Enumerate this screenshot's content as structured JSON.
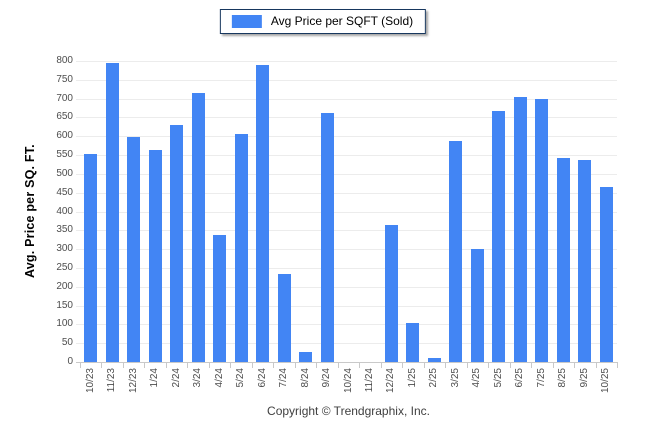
{
  "legend": {
    "label": "Avg Price per SQFT (Sold)",
    "swatch_color": "#4285f4"
  },
  "footer": {
    "text": "Copyright © Trendgraphix, Inc."
  },
  "chart_data": {
    "type": "bar",
    "title": "Avg Price per SQFT (Sold)",
    "categories": [
      "10/23",
      "11/23",
      "12/23",
      "1/24",
      "2/24",
      "3/24",
      "4/24",
      "5/24",
      "6/24",
      "7/24",
      "8/24",
      "9/24",
      "10/24",
      "11/24",
      "12/24",
      "1/25",
      "2/25",
      "3/25",
      "4/25",
      "5/25",
      "6/25",
      "7/25",
      "8/25",
      "9/25",
      "10/25"
    ],
    "values": [
      552,
      795,
      598,
      563,
      629,
      716,
      337,
      606,
      789,
      233,
      27,
      661,
      0,
      0,
      364,
      103,
      11,
      588,
      301,
      668,
      704,
      698,
      542,
      536,
      464
    ],
    "xlabel": "",
    "ylabel": "Avg. Price per SQ. FT.",
    "ylim": [
      0,
      800
    ],
    "ytick_step": 50,
    "grid": true,
    "legend_position": "top-center",
    "bar_color": "#4285f4",
    "background": "#ffffff"
  }
}
